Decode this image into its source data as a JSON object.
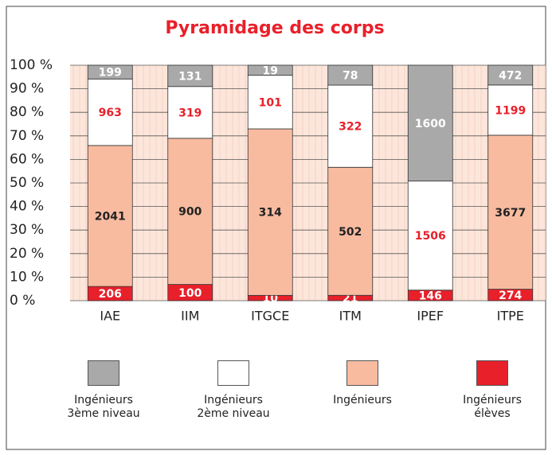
{
  "chart_data": {
    "type": "stacked_percent_bar",
    "title": "Pyramidage des corps",
    "categories": [
      "IAE",
      "IIM",
      "ITGCE",
      "ITM",
      "IPEF",
      "ITPE"
    ],
    "series": [
      {
        "name": "Ingénieurs élèves",
        "color": "#e8202a",
        "label_color": "#ffffff",
        "values": [
          206,
          100,
          10,
          21,
          146,
          274
        ]
      },
      {
        "name": "Ingénieurs",
        "color": "#f8bba0",
        "label_color": "#222222",
        "values": [
          2041,
          900,
          314,
          502,
          null,
          3677
        ]
      },
      {
        "name": "Ingénieurs 2ème niveau",
        "color": "#ffffff",
        "label_color": "#e8202a",
        "values": [
          963,
          319,
          101,
          322,
          1506,
          1199
        ]
      },
      {
        "name": "Ingénieurs 3ème niveau",
        "color": "#a9a9a9",
        "label_color": "#ffffff",
        "values": [
          199,
          131,
          19,
          78,
          1600,
          472
        ]
      }
    ],
    "ylim": [
      0,
      100
    ],
    "yticks": [
      {
        "value": 0,
        "label": "0 %"
      },
      {
        "value": 10,
        "label": "10 %"
      },
      {
        "value": 20,
        "label": "20 %"
      },
      {
        "value": 30,
        "label": "30 %"
      },
      {
        "value": 40,
        "label": "40 %"
      },
      {
        "value": 50,
        "label": "50 %"
      },
      {
        "value": 60,
        "label": "60 %"
      },
      {
        "value": 70,
        "label": "70 %"
      },
      {
        "value": 80,
        "label": "80 %"
      },
      {
        "value": 90,
        "label": "90 %"
      },
      {
        "value": 100,
        "label": "100 %"
      }
    ],
    "grid": true
  }
}
